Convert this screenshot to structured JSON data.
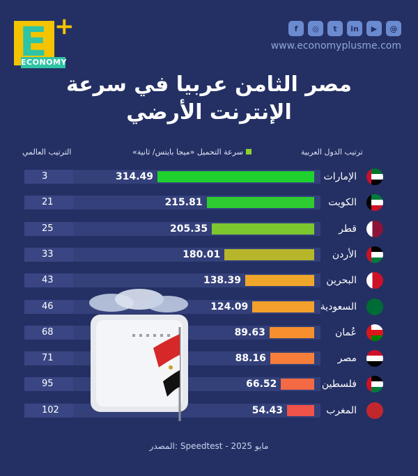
{
  "brand": {
    "logo_letter": "E",
    "logo_plus": "+",
    "logo_word": "ECONOMY",
    "website": "www.economyplusme.com"
  },
  "social_icons": [
    "facebook-icon",
    "instagram-icon",
    "twitter-icon",
    "linkedin-icon",
    "youtube-icon",
    "threads-icon"
  ],
  "social_glyphs": [
    "f",
    "◎",
    "t",
    "in",
    "▶",
    "@"
  ],
  "title_line1": "مصر الثامن عربيا في سرعة",
  "title_line2": "الإنترنت الأرضي",
  "header": {
    "left": "الترتيب العالمي",
    "middle": "سرعة التحميل «ميجا بايتس/ ثانية»",
    "right": "ترتيب الدول العربية"
  },
  "source": "المصدر: Speedtest - مايو 2025",
  "colors": {
    "background": "#243064",
    "row": "#33407a",
    "legend": "#8ad32c"
  },
  "chart_data": {
    "type": "bar",
    "categories": [
      "الإمارات",
      "الكويت",
      "قطر",
      "الأردن",
      "البحرين",
      "السعودية",
      "عُمان",
      "مصر",
      "فلسطين",
      "المغرب"
    ],
    "values": [
      314.49,
      215.81,
      205.35,
      180.01,
      138.39,
      124.09,
      89.63,
      88.16,
      66.52,
      54.43
    ],
    "value_labels": [
      "314.49",
      "215.81",
      "205.35",
      "180.01",
      "138.39",
      "124.09",
      "89.63",
      "88.16",
      "66.52",
      "54.43"
    ],
    "global_rank": [
      "3",
      "21",
      "25",
      "33",
      "43",
      "46",
      "68",
      "71",
      "95",
      "102"
    ],
    "bar_colors": [
      "#1fd12e",
      "#2ecc30",
      "#7cc72e",
      "#b7b62a",
      "#f0a62a",
      "#f3a02c",
      "#f6902e",
      "#f67e3a",
      "#f46a44",
      "#f1524a"
    ],
    "flags": [
      "uae-flag-icon",
      "kuwait-flag-icon",
      "qatar-flag-icon",
      "jordan-flag-icon",
      "bahrain-flag-icon",
      "saudi-flag-icon",
      "oman-flag-icon",
      "egypt-flag-icon",
      "palestine-flag-icon",
      "morocco-flag-icon"
    ]
  }
}
